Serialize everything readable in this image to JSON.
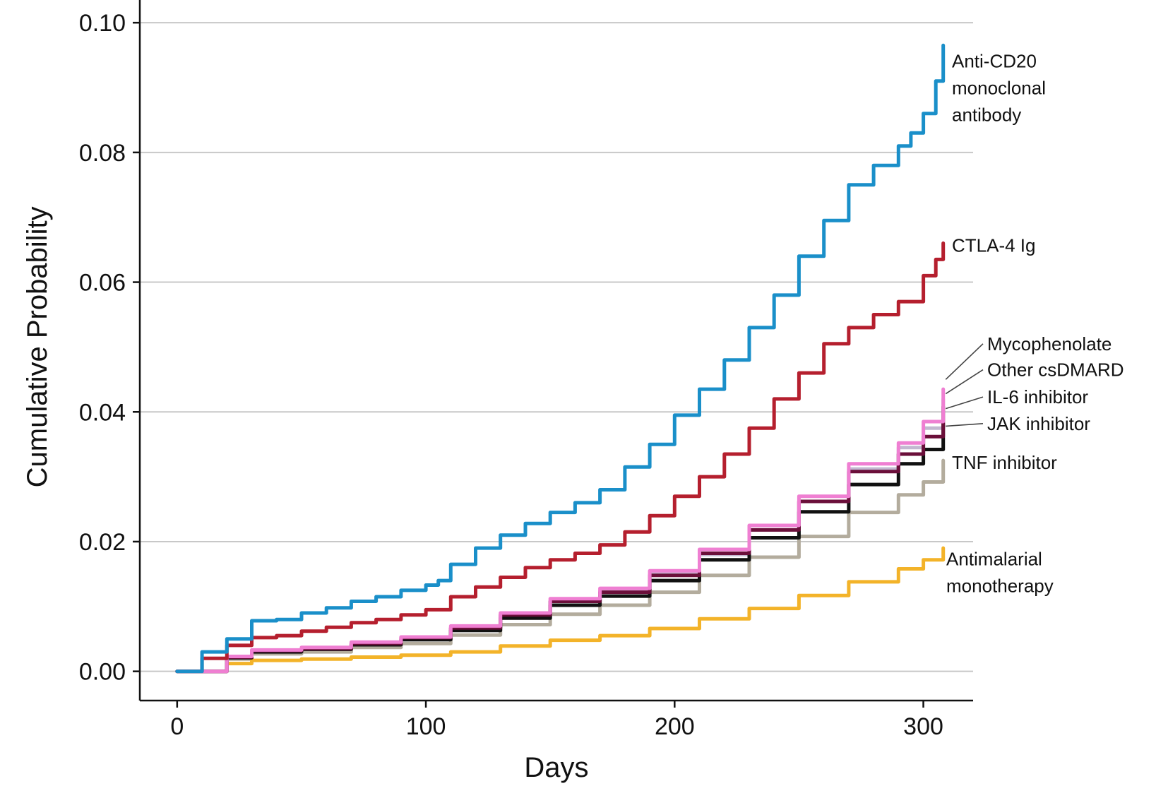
{
  "chart_data": {
    "type": "line",
    "xlabel": "Days",
    "ylabel": "Cumulative Probability",
    "xlim": [
      -15,
      320
    ],
    "ylim": [
      -0.0045,
      0.1035
    ],
    "xticks": [
      0,
      100,
      200,
      300
    ],
    "xtick_labels": [
      "0",
      "100",
      "200",
      "300"
    ],
    "yticks": [
      0.0,
      0.02,
      0.04,
      0.06,
      0.08,
      0.1
    ],
    "ytick_labels": [
      "0.00",
      "0.02",
      "0.04",
      "0.06",
      "0.08",
      "0.10"
    ],
    "grid": "horizontal",
    "series": [
      {
        "name": "Anti-CD20 monoclonal antibody",
        "label_lines": [
          "Anti-CD20",
          "monoclonal",
          "antibody"
        ],
        "color": "#1a8fc9",
        "x": [
          0,
          10,
          20,
          30,
          40,
          50,
          60,
          70,
          80,
          90,
          100,
          105,
          110,
          120,
          130,
          140,
          150,
          160,
          170,
          180,
          190,
          200,
          210,
          220,
          230,
          240,
          250,
          260,
          270,
          280,
          290,
          295,
          300,
          305,
          308
        ],
        "y": [
          0,
          0.003,
          0.005,
          0.0078,
          0.008,
          0.009,
          0.0098,
          0.0108,
          0.0115,
          0.0125,
          0.0133,
          0.014,
          0.0165,
          0.019,
          0.021,
          0.0228,
          0.0245,
          0.026,
          0.028,
          0.0315,
          0.035,
          0.0395,
          0.0435,
          0.048,
          0.053,
          0.058,
          0.064,
          0.0695,
          0.075,
          0.078,
          0.081,
          0.083,
          0.086,
          0.091,
          0.0965
        ]
      },
      {
        "name": "CTLA-4 Ig",
        "label_lines": [
          "CTLA-4 Ig"
        ],
        "color": "#b51f2e",
        "x": [
          0,
          10,
          20,
          30,
          40,
          50,
          60,
          70,
          80,
          90,
          100,
          110,
          120,
          130,
          140,
          150,
          160,
          170,
          180,
          190,
          200,
          210,
          220,
          230,
          240,
          250,
          260,
          270,
          280,
          290,
          300,
          305,
          308
        ],
        "y": [
          0,
          0.002,
          0.004,
          0.0052,
          0.0055,
          0.0062,
          0.0068,
          0.0075,
          0.008,
          0.0087,
          0.0095,
          0.0115,
          0.013,
          0.0145,
          0.016,
          0.0172,
          0.0182,
          0.0195,
          0.0215,
          0.024,
          0.027,
          0.03,
          0.0335,
          0.0375,
          0.042,
          0.046,
          0.0505,
          0.053,
          0.055,
          0.057,
          0.061,
          0.0635,
          0.066
        ]
      },
      {
        "name": "Mycophenolate",
        "label_lines": [
          "Mycophenolate"
        ],
        "color": "#c2b8d0",
        "x": [
          0,
          20,
          30,
          50,
          70,
          90,
          110,
          130,
          150,
          170,
          190,
          210,
          230,
          250,
          270,
          290,
          300,
          308
        ],
        "y": [
          0,
          0.0022,
          0.0032,
          0.0036,
          0.0043,
          0.005,
          0.0066,
          0.0085,
          0.0108,
          0.0124,
          0.015,
          0.018,
          0.0218,
          0.0262,
          0.0312,
          0.0345,
          0.0375,
          0.042
        ]
      },
      {
        "name": "Other csDMARD",
        "label_lines": [
          "Other csDMARD"
        ],
        "color": "#ef7fd2",
        "x": [
          0,
          20,
          30,
          50,
          70,
          90,
          110,
          130,
          150,
          170,
          190,
          210,
          230,
          250,
          270,
          290,
          300,
          308
        ],
        "y": [
          0,
          0.0023,
          0.0033,
          0.0037,
          0.0045,
          0.0053,
          0.007,
          0.009,
          0.0112,
          0.0128,
          0.0155,
          0.0188,
          0.0225,
          0.027,
          0.032,
          0.0352,
          0.0385,
          0.0435
        ]
      },
      {
        "name": "IL-6 inhibitor",
        "label_lines": [
          "IL-6 inhibitor"
        ],
        "color": "#6b0f3a",
        "x": [
          0,
          20,
          30,
          50,
          70,
          90,
          110,
          130,
          150,
          170,
          190,
          210,
          230,
          250,
          270,
          290,
          300,
          308
        ],
        "y": [
          0,
          0.0022,
          0.0032,
          0.0035,
          0.0043,
          0.0052,
          0.0067,
          0.0087,
          0.0108,
          0.0122,
          0.0148,
          0.0182,
          0.0218,
          0.0262,
          0.0308,
          0.0335,
          0.0362,
          0.0408
        ]
      },
      {
        "name": "JAK inhibitor",
        "label_lines": [
          "JAK inhibitor"
        ],
        "color": "#111111",
        "x": [
          0,
          20,
          30,
          50,
          70,
          90,
          110,
          130,
          150,
          170,
          190,
          210,
          230,
          250,
          270,
          290,
          300,
          308
        ],
        "y": [
          0,
          0.0021,
          0.003,
          0.0034,
          0.0041,
          0.0049,
          0.0063,
          0.0082,
          0.0102,
          0.0116,
          0.014,
          0.0172,
          0.0206,
          0.0246,
          0.0288,
          0.032,
          0.0342,
          0.0382
        ]
      },
      {
        "name": "TNF inhibitor",
        "label_lines": [
          "TNF inhibitor"
        ],
        "color": "#b3ac9d",
        "x": [
          0,
          20,
          30,
          50,
          70,
          90,
          110,
          130,
          150,
          170,
          190,
          210,
          230,
          250,
          270,
          290,
          300,
          308
        ],
        "y": [
          0,
          0.0019,
          0.0027,
          0.003,
          0.0037,
          0.0043,
          0.0056,
          0.0072,
          0.0088,
          0.0102,
          0.0122,
          0.0148,
          0.0176,
          0.0208,
          0.0245,
          0.0272,
          0.0292,
          0.0325
        ]
      },
      {
        "name": "Antimalarial monotherapy",
        "label_lines": [
          "Antimalarial",
          "monotherapy"
        ],
        "color": "#f3b329",
        "x": [
          0,
          20,
          30,
          50,
          70,
          90,
          110,
          130,
          150,
          170,
          190,
          210,
          230,
          250,
          270,
          290,
          300,
          308
        ],
        "y": [
          0,
          0.0012,
          0.0017,
          0.0019,
          0.0022,
          0.0025,
          0.003,
          0.0039,
          0.0048,
          0.0055,
          0.0066,
          0.0081,
          0.0097,
          0.0117,
          0.0138,
          0.0158,
          0.0172,
          0.019
        ]
      }
    ]
  }
}
